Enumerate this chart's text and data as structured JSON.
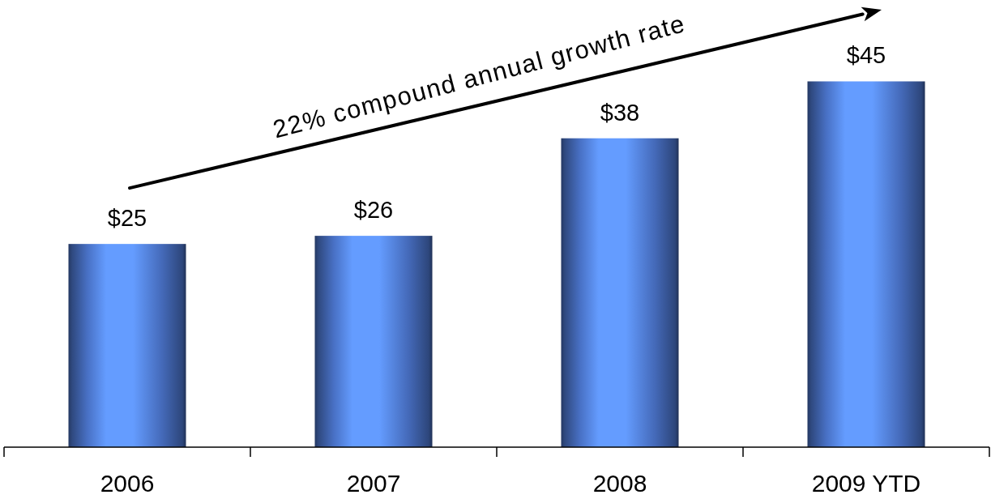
{
  "chart_data": {
    "type": "bar",
    "categories": [
      "2006",
      "2007",
      "2008",
      "2009 YTD"
    ],
    "values": [
      25,
      26,
      38,
      45
    ],
    "value_labels": [
      "$25",
      "$26",
      "$38",
      "$45"
    ],
    "color": "#5a8cf5",
    "annotations": [
      "22% compound annual growth rate"
    ]
  }
}
